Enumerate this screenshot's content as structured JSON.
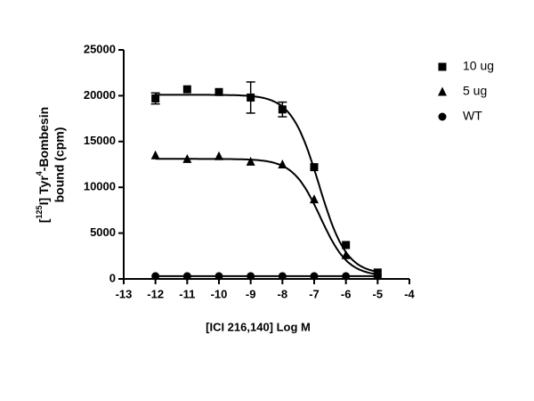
{
  "chart_data": {
    "type": "scatter",
    "xlabel": "[ICI 216,140] Log M",
    "ylabel": {
      "line1": [
        "[",
        "125",
        "I] Tyr",
        "4",
        "-Bombesin"
      ],
      "line2": "bound (cpm)"
    },
    "xlim": [
      -13,
      -4
    ],
    "xticks": [
      -13,
      -12,
      -11,
      -10,
      -9,
      -8,
      -7,
      -6,
      -5,
      -4
    ],
    "ylim": [
      0,
      25000
    ],
    "yticks": [
      0,
      5000,
      10000,
      15000,
      20000,
      25000
    ],
    "legend": "right",
    "series": [
      {
        "name": "10 ug",
        "marker": "square",
        "color": "#000000",
        "x": [
          -12,
          -11,
          -10,
          -9,
          -8,
          -7,
          -6,
          -5
        ],
        "values": [
          19700,
          20700,
          20400,
          19800,
          18500,
          12200,
          3700,
          700
        ],
        "errors": [
          600,
          null,
          null,
          1700,
          800,
          null,
          null,
          null
        ],
        "fit": {
          "top": 20100,
          "bottom": 500,
          "logec50": -6.85,
          "hill": 1
        }
      },
      {
        "name": "5 ug",
        "marker": "triangle",
        "color": "#000000",
        "x": [
          -12,
          -11,
          -10,
          -9,
          -8,
          -7,
          -6,
          -5
        ],
        "values": [
          13500,
          13100,
          13400,
          12800,
          12500,
          8700,
          2600,
          600
        ],
        "errors": [
          null,
          null,
          null,
          null,
          null,
          null,
          null,
          null
        ],
        "fit": {
          "top": 13100,
          "bottom": 300,
          "logec50": -6.8,
          "hill": 1
        }
      },
      {
        "name": "WT",
        "marker": "circle",
        "color": "#000000",
        "x": [
          -12,
          -11,
          -10,
          -9,
          -8,
          -7,
          -6,
          -5
        ],
        "values": [
          300,
          300,
          300,
          300,
          300,
          300,
          300,
          300
        ],
        "errors": [
          null,
          null,
          null,
          null,
          null,
          null,
          null,
          null
        ],
        "fit": {
          "top": 300,
          "bottom": 300,
          "logec50": -7,
          "hill": 1
        }
      }
    ]
  }
}
